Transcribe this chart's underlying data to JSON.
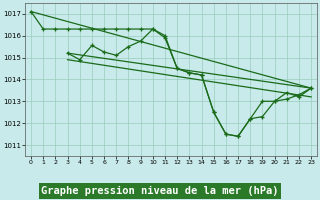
{
  "background_color": "#c8eaea",
  "grid_color": "#99ccbb",
  "line_color": "#1a6b1a",
  "xlabel": "Graphe pression niveau de la mer (hPa)",
  "xlabel_fontsize": 7.5,
  "ylim": [
    1010.5,
    1017.5
  ],
  "xlim": [
    -0.5,
    23.5
  ],
  "yticks": [
    1011,
    1012,
    1013,
    1014,
    1015,
    1016,
    1017
  ],
  "xticks": [
    0,
    1,
    2,
    3,
    4,
    5,
    6,
    7,
    8,
    9,
    10,
    11,
    12,
    13,
    14,
    15,
    16,
    17,
    18,
    19,
    20,
    21,
    22,
    23
  ],
  "series1_x": [
    0,
    1,
    2,
    3,
    4,
    5,
    6,
    7,
    8,
    9,
    10,
    11,
    12,
    13,
    14,
    15,
    16,
    17,
    18,
    19,
    20,
    21,
    22,
    23
  ],
  "series1_y": [
    1017.1,
    1016.3,
    1016.3,
    1016.3,
    1016.3,
    1016.3,
    1016.3,
    1016.3,
    1016.3,
    1016.3,
    1016.3,
    1016.0,
    1014.5,
    1014.3,
    1014.2,
    1012.5,
    1011.5,
    1011.4,
    1012.2,
    1013.0,
    1013.0,
    1013.4,
    1013.2,
    1013.6
  ],
  "series2_x": [
    3,
    4,
    5,
    6,
    7,
    8,
    9,
    10,
    11,
    12,
    13,
    14,
    15,
    16,
    17,
    18,
    19,
    20,
    21,
    22,
    23
  ],
  "series2_y": [
    1015.2,
    1014.9,
    1015.55,
    1015.25,
    1015.1,
    1015.5,
    1015.75,
    1016.3,
    1015.9,
    1014.5,
    1014.3,
    1014.2,
    1012.5,
    1011.5,
    1011.4,
    1012.2,
    1012.3,
    1013.0,
    1013.1,
    1013.3,
    1013.6
  ],
  "trend1_x": [
    0,
    23
  ],
  "trend1_y": [
    1017.1,
    1013.6
  ],
  "trend2_x": [
    3,
    23
  ],
  "trend2_y": [
    1015.2,
    1013.6
  ],
  "trend3_x": [
    3,
    23
  ],
  "trend3_y": [
    1014.9,
    1013.2
  ]
}
